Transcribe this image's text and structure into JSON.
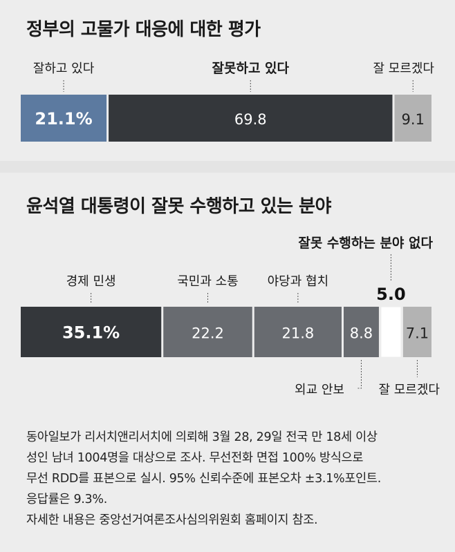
{
  "chart_data": [
    {
      "type": "bar",
      "orientation": "horizontal-stacked-100",
      "title": "정부의 고물가 대응에 대한 평가",
      "categories": [
        "잘하고 있다",
        "잘못하고 있다",
        "잘 모르겠다"
      ],
      "values": [
        21.1,
        69.8,
        9.1
      ],
      "value_labels": [
        "21.1%",
        "69.8",
        "9.1"
      ],
      "colors": [
        "#5c7aa0",
        "#34373b",
        "#b3b3b3"
      ],
      "label_colors": [
        "#ffffff",
        "#ffffff",
        "#222222"
      ]
    },
    {
      "type": "bar",
      "orientation": "horizontal-stacked-100",
      "title": "윤석열 대통령이 잘못 수행하고 있는 분야",
      "categories": [
        "경제 민생",
        "국민과 소통",
        "야당과 협치",
        "외교 안보",
        "잘못 수행하는 분야 없다",
        "잘 모르겠다"
      ],
      "values": [
        35.1,
        22.2,
        21.8,
        8.8,
        5.0,
        7.1
      ],
      "value_labels": [
        "35.1%",
        "22.2",
        "21.8",
        "8.8",
        "5.0",
        "7.1"
      ],
      "colors": [
        "#34373b",
        "#686b70",
        "#686b70",
        "#686b70",
        "#ffffff",
        "#b3b3b3"
      ],
      "label_colors": [
        "#ffffff",
        "#ffffff",
        "#ffffff",
        "#ffffff",
        "#111111",
        "#222222"
      ]
    }
  ],
  "note": [
    "동아일보가 리서치앤리서치에 의뢰해 3월 28, 29일 전국 만 18세 이상",
    "성인 남녀 1004명을 대상으로 조사. 무선전화 면접 100% 방식으로",
    "무선 RDD를 표본으로 실시. 95% 신뢰수준에 표본오차 ±3.1%포인트.",
    "응답률은 9.3%.",
    "자세한 내용은 중앙선거여론조사심의위원회 홈페이지 참조."
  ]
}
